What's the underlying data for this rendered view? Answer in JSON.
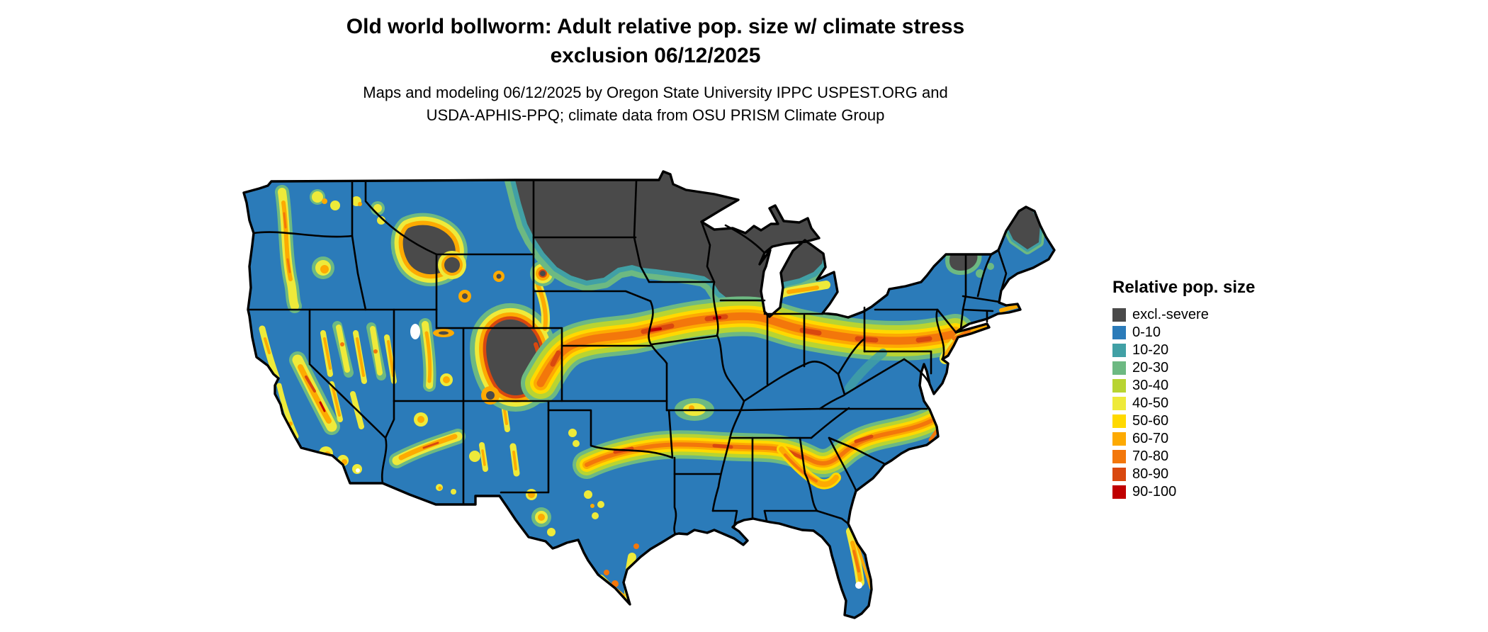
{
  "title": {
    "line1": "Old world bollworm: Adult relative pop. size w/ climate stress",
    "line2": "exclusion 06/12/2025"
  },
  "subtitle": {
    "line1": "Maps and modeling 06/12/2025 by Oregon State University IPPC USPEST.ORG and",
    "line2": "USDA-APHIS-PPQ; climate data from OSU PRISM Climate Group"
  },
  "legend": {
    "title": "Relative pop. size",
    "entries": [
      {
        "label": "excl.-severe",
        "color": "#4a4a4a"
      },
      {
        "label": "0-10",
        "color": "#2b7bb9"
      },
      {
        "label": "10-20",
        "color": "#41a0a5"
      },
      {
        "label": "20-30",
        "color": "#6db982"
      },
      {
        "label": "30-40",
        "color": "#b8d432"
      },
      {
        "label": "40-50",
        "color": "#eeea3a"
      },
      {
        "label": "50-60",
        "color": "#ffd900"
      },
      {
        "label": "60-70",
        "color": "#fdaa02"
      },
      {
        "label": "70-80",
        "color": "#f3770b"
      },
      {
        "label": "80-90",
        "color": "#d9480f"
      },
      {
        "label": "90-100",
        "color": "#c00000"
      }
    ]
  }
}
